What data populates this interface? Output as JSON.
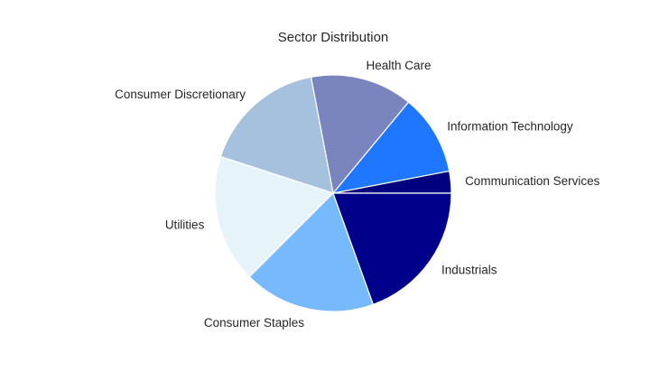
{
  "chart_data": {
    "type": "pie",
    "title": "Sector Distribution",
    "start_angle_deg": 0,
    "direction": "counterclockwise",
    "slices": [
      {
        "label": "Communication Services",
        "value": 3.0,
        "color": "#000080"
      },
      {
        "label": "Information Technology",
        "value": 11.0,
        "color": "#1f77ff"
      },
      {
        "label": "Health Care",
        "value": 14.0,
        "color": "#7a85bd"
      },
      {
        "label": "Consumer Discretionary",
        "value": 17.0,
        "color": "#a6c1de"
      },
      {
        "label": "Utilities",
        "value": 17.5,
        "color": "#e6f4fa"
      },
      {
        "label": "Consumer Staples",
        "value": 18.0,
        "color": "#76b9fc"
      },
      {
        "label": "Industrials",
        "value": 19.5,
        "color": "#00008b"
      }
    ],
    "legend": "none",
    "grid": false
  }
}
